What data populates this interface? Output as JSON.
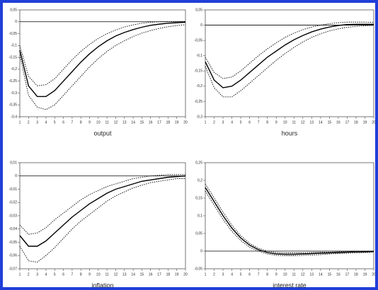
{
  "chart_data": [
    {
      "type": "line",
      "xlabel": "output",
      "x": [
        1,
        2,
        3,
        4,
        5,
        6,
        7,
        8,
        9,
        10,
        11,
        12,
        13,
        14,
        15,
        16,
        17,
        18,
        19,
        20
      ],
      "xlim": [
        1,
        20
      ],
      "xticks": [
        1,
        2,
        3,
        4,
        5,
        6,
        7,
        8,
        9,
        10,
        11,
        12,
        13,
        14,
        15,
        16,
        17,
        18,
        19,
        20
      ],
      "ylim": [
        -0.4,
        0.05
      ],
      "yticks": [
        {
          "value": 0.05,
          "label": "0,05"
        },
        0,
        {
          "value": -0.05,
          "label": "-0,05"
        },
        {
          "value": -0.1,
          "label": "-0,1"
        },
        {
          "value": -0.15,
          "label": "-0,15"
        },
        {
          "value": -0.2,
          "label": "-0,2"
        },
        {
          "value": -0.25,
          "label": "-0,25"
        },
        {
          "value": -0.3,
          "label": "-0,3"
        },
        {
          "value": -0.35,
          "label": "-0,35"
        },
        {
          "value": -0.4,
          "label": "-0,4"
        }
      ],
      "zero_line": true,
      "series": [
        {
          "color": "#000000",
          "dashed": false,
          "values": [
            -0.12,
            -0.27,
            -0.315,
            -0.315,
            -0.29,
            -0.25,
            -0.21,
            -0.17,
            -0.135,
            -0.105,
            -0.08,
            -0.06,
            -0.045,
            -0.033,
            -0.023,
            -0.015,
            -0.01,
            -0.006,
            -0.004,
            -0.002
          ]
        },
        {
          "color": "#000000",
          "dashed": true,
          "values": [
            -0.1,
            -0.23,
            -0.27,
            -0.265,
            -0.24,
            -0.2,
            -0.16,
            -0.125,
            -0.095,
            -0.07,
            -0.05,
            -0.035,
            -0.022,
            -0.013,
            -0.006,
            -0.002,
            0,
            0.001,
            0.001,
            0.001
          ]
        },
        {
          "color": "#000000",
          "dashed": true,
          "values": [
            -0.14,
            -0.31,
            -0.36,
            -0.37,
            -0.35,
            -0.31,
            -0.27,
            -0.23,
            -0.19,
            -0.155,
            -0.125,
            -0.1,
            -0.08,
            -0.062,
            -0.048,
            -0.037,
            -0.028,
            -0.021,
            -0.016,
            -0.012
          ]
        }
      ]
    },
    {
      "type": "line",
      "xlabel": "hours",
      "x": [
        1,
        2,
        3,
        4,
        5,
        6,
        7,
        8,
        9,
        10,
        11,
        12,
        13,
        14,
        15,
        16,
        17,
        18,
        19,
        20
      ],
      "xlim": [
        1,
        20
      ],
      "xticks": [
        1,
        2,
        3,
        4,
        5,
        6,
        7,
        8,
        9,
        10,
        11,
        12,
        13,
        14,
        15,
        16,
        17,
        18,
        19,
        20
      ],
      "ylim": [
        -0.3,
        0.05
      ],
      "yticks": [
        {
          "value": 0.05,
          "label": "0,05"
        },
        0,
        {
          "value": -0.05,
          "label": "-0,05"
        },
        {
          "value": -0.1,
          "label": "-0,1"
        },
        {
          "value": -0.15,
          "label": "-0,15"
        },
        {
          "value": -0.2,
          "label": "-0,2"
        },
        {
          "value": -0.25,
          "label": "-0,25"
        },
        {
          "value": -0.3,
          "label": "-0,3"
        }
      ],
      "zero_line": true,
      "series": [
        {
          "color": "#000000",
          "dashed": false,
          "values": [
            -0.12,
            -0.18,
            -0.205,
            -0.2,
            -0.18,
            -0.155,
            -0.13,
            -0.105,
            -0.085,
            -0.065,
            -0.048,
            -0.034,
            -0.022,
            -0.013,
            -0.006,
            -0.001,
            0.002,
            0.003,
            0.003,
            0.003
          ]
        },
        {
          "color": "#000000",
          "dashed": true,
          "values": [
            -0.105,
            -0.155,
            -0.175,
            -0.17,
            -0.15,
            -0.125,
            -0.1,
            -0.078,
            -0.058,
            -0.04,
            -0.026,
            -0.015,
            -0.006,
            0,
            0.005,
            0.008,
            0.01,
            0.01,
            0.01,
            0.009
          ]
        },
        {
          "color": "#000000",
          "dashed": true,
          "values": [
            -0.135,
            -0.205,
            -0.235,
            -0.235,
            -0.215,
            -0.19,
            -0.165,
            -0.14,
            -0.115,
            -0.093,
            -0.073,
            -0.055,
            -0.04,
            -0.028,
            -0.019,
            -0.012,
            -0.007,
            -0.004,
            -0.002,
            -0.001
          ]
        }
      ]
    },
    {
      "type": "line",
      "xlabel": "inflation",
      "x": [
        1,
        2,
        3,
        4,
        5,
        6,
        7,
        8,
        9,
        10,
        11,
        12,
        13,
        14,
        15,
        16,
        17,
        18,
        19,
        20
      ],
      "xlim": [
        1,
        20
      ],
      "xticks": [
        1,
        2,
        3,
        4,
        5,
        6,
        7,
        8,
        9,
        10,
        11,
        12,
        13,
        14,
        15,
        16,
        17,
        18,
        19,
        20
      ],
      "ylim": [
        -0.07,
        0.01
      ],
      "yticks": [
        {
          "value": 0.01,
          "label": "0,01"
        },
        0,
        {
          "value": -0.01,
          "label": "-0,01"
        },
        {
          "value": -0.02,
          "label": "-0,02"
        },
        {
          "value": -0.03,
          "label": "-0,03"
        },
        {
          "value": -0.04,
          "label": "-0,04"
        },
        {
          "value": -0.05,
          "label": "-0,05"
        },
        {
          "value": -0.06,
          "label": "-0,06"
        },
        {
          "value": -0.07,
          "label": "-0,07"
        }
      ],
      "zero_line": true,
      "series": [
        {
          "color": "#000000",
          "dashed": false,
          "values": [
            -0.045,
            -0.053,
            -0.053,
            -0.049,
            -0.043,
            -0.037,
            -0.031,
            -0.026,
            -0.021,
            -0.017,
            -0.013,
            -0.01,
            -0.008,
            -0.006,
            -0.004,
            -0.003,
            -0.002,
            -0.001,
            -0.0005,
            0
          ]
        },
        {
          "color": "#000000",
          "dashed": true,
          "values": [
            -0.037,
            -0.044,
            -0.043,
            -0.039,
            -0.033,
            -0.028,
            -0.023,
            -0.018,
            -0.014,
            -0.011,
            -0.008,
            -0.006,
            -0.004,
            -0.002,
            -0.001,
            0,
            0.0005,
            0.001,
            0.001,
            0.001
          ]
        },
        {
          "color": "#000000",
          "dashed": true,
          "values": [
            -0.053,
            -0.064,
            -0.065,
            -0.06,
            -0.054,
            -0.047,
            -0.04,
            -0.034,
            -0.029,
            -0.024,
            -0.019,
            -0.015,
            -0.012,
            -0.009,
            -0.007,
            -0.005,
            -0.004,
            -0.003,
            -0.002,
            -0.002
          ]
        }
      ]
    },
    {
      "type": "line",
      "xlabel": "interest rate",
      "x": [
        1,
        2,
        3,
        4,
        5,
        6,
        7,
        8,
        9,
        10,
        11,
        12,
        13,
        14,
        15,
        16,
        17,
        18,
        19,
        20
      ],
      "xlim": [
        1,
        20
      ],
      "xticks": [
        1,
        2,
        3,
        4,
        5,
        6,
        7,
        8,
        9,
        10,
        11,
        12,
        13,
        14,
        15,
        16,
        17,
        18,
        19,
        20
      ],
      "ylim": [
        -0.05,
        0.25
      ],
      "yticks": [
        {
          "value": 0.25,
          "label": "0,25"
        },
        {
          "value": 0.2,
          "label": "0,2"
        },
        {
          "value": 0.15,
          "label": "0,15"
        },
        {
          "value": 0.1,
          "label": "0,1"
        },
        {
          "value": 0.05,
          "label": "0,05"
        },
        0,
        {
          "value": -0.05,
          "label": "-0,05"
        }
      ],
      "zero_line": true,
      "series": [
        {
          "color": "#000000",
          "dashed": false,
          "values": [
            0.18,
            0.14,
            0.1,
            0.065,
            0.037,
            0.017,
            0.004,
            -0.004,
            -0.008,
            -0.009,
            -0.009,
            -0.008,
            -0.007,
            -0.006,
            -0.005,
            -0.004,
            -0.003,
            -0.002,
            -0.002,
            -0.001
          ]
        },
        {
          "color": "#000000",
          "dashed": true,
          "values": [
            0.19,
            0.15,
            0.11,
            0.073,
            0.043,
            0.022,
            0.008,
            0,
            -0.004,
            -0.005,
            -0.005,
            -0.005,
            -0.004,
            -0.003,
            -0.003,
            -0.002,
            -0.002,
            -0.001,
            -0.001,
            0
          ]
        },
        {
          "color": "#000000",
          "dashed": true,
          "values": [
            0.17,
            0.13,
            0.09,
            0.056,
            0.03,
            0.011,
            0,
            -0.008,
            -0.012,
            -0.013,
            -0.013,
            -0.012,
            -0.011,
            -0.01,
            -0.008,
            -0.007,
            -0.006,
            -0.005,
            -0.004,
            -0.003
          ]
        }
      ]
    }
  ]
}
